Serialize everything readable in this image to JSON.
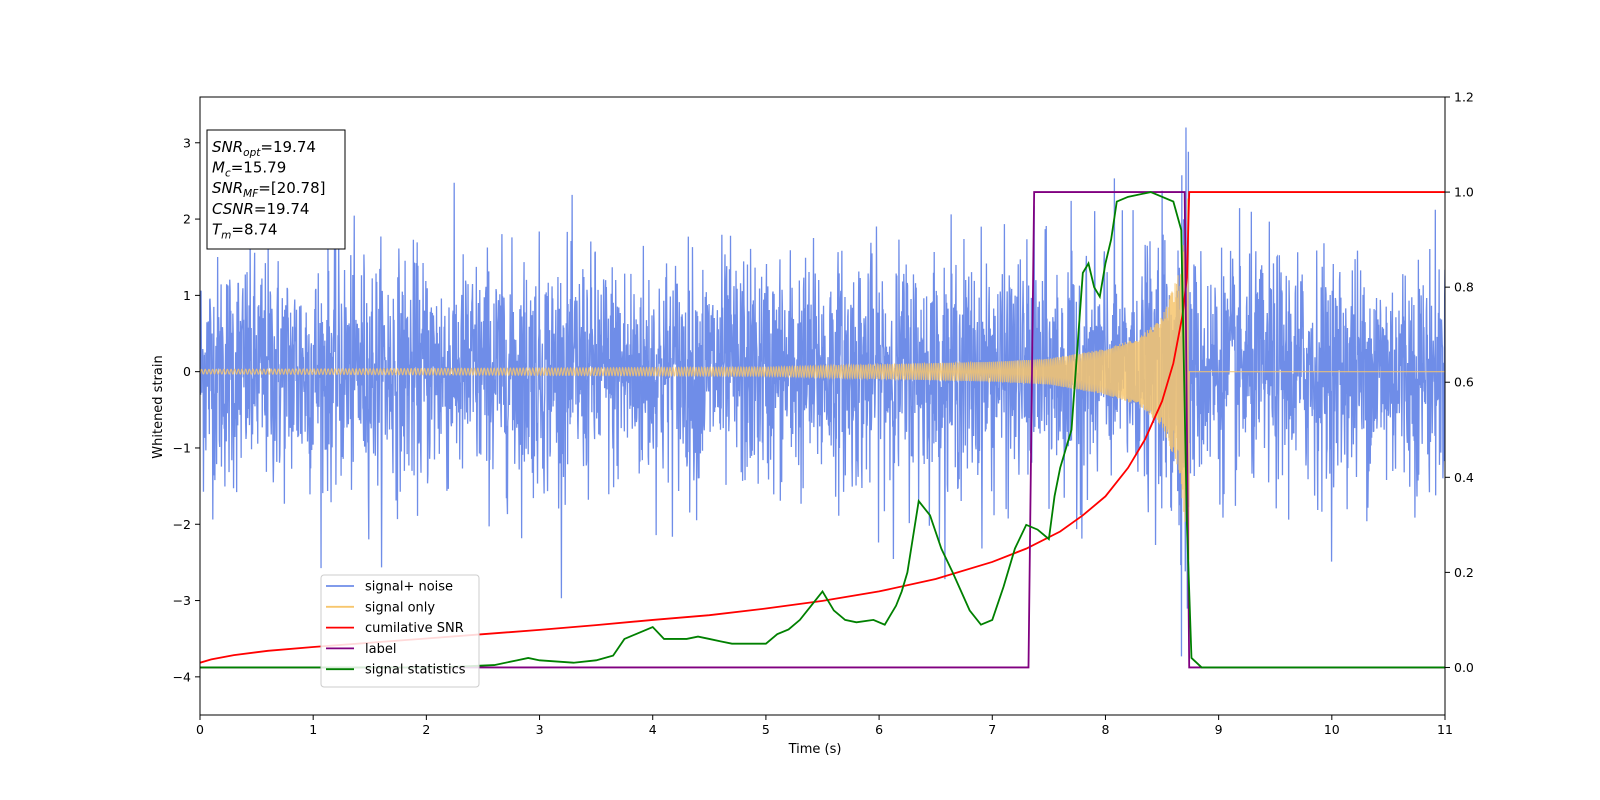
{
  "chart_data": {
    "type": "line",
    "xlabel": "Time (s)",
    "ylabel": "Whitened strain",
    "xlim": [
      0,
      11
    ],
    "ylim": [
      -4.5,
      3.6
    ],
    "ylim_right": [
      -0.1,
      1.2
    ],
    "x_ticks": [
      0,
      1,
      2,
      3,
      4,
      5,
      6,
      7,
      8,
      9,
      10,
      11
    ],
    "y_ticks": [
      -4,
      -3,
      -2,
      -1,
      0,
      1,
      2,
      3
    ],
    "y_ticks_right": [
      0.0,
      0.2,
      0.4,
      0.6,
      0.8,
      1.0,
      1.2
    ],
    "y_tick_labels": [
      "−4",
      "−3",
      "−2",
      "−1",
      "0",
      "1",
      "2",
      "3"
    ],
    "y_tick_labels_right": [
      "0.0",
      "0.2",
      "0.4",
      "0.6",
      "0.8",
      "1.0",
      "1.2"
    ],
    "grid": false,
    "legend_position": "lower-left",
    "colors": {
      "noise": "#6f8de8",
      "signal": "#f7c66d",
      "cumulative": "#ff0000",
      "label": "#800080",
      "stats": "#008000"
    },
    "series": [
      {
        "name": "signal+ noise",
        "axis": "left",
        "description_values": {
          "noise_sigma": 0.75,
          "peak": 3.2,
          "trough": -4.15
        }
      },
      {
        "name": "signal only",
        "axis": "left",
        "merger_time": 8.74,
        "envelope": [
          [
            0,
            0.03
          ],
          [
            5,
            0.06
          ],
          [
            7,
            0.13
          ],
          [
            7.5,
            0.17
          ],
          [
            8,
            0.3
          ],
          [
            8.3,
            0.45
          ],
          [
            8.5,
            0.72
          ],
          [
            8.65,
            1.3
          ],
          [
            8.74,
            2.5
          ]
        ]
      },
      {
        "name": "cumilative SNR",
        "axis": "right",
        "x": [
          0,
          0.1,
          0.3,
          0.6,
          1.0,
          1.5,
          2.0,
          2.5,
          3.0,
          3.5,
          4.0,
          4.5,
          5.0,
          5.5,
          6.0,
          6.5,
          7.0,
          7.3,
          7.6,
          7.8,
          8.0,
          8.2,
          8.35,
          8.5,
          8.6,
          8.68,
          8.72,
          8.74,
          11
        ],
        "y": [
          0.01,
          0.017,
          0.026,
          0.035,
          0.043,
          0.052,
          0.061,
          0.07,
          0.079,
          0.089,
          0.1,
          0.11,
          0.124,
          0.14,
          0.16,
          0.186,
          0.222,
          0.25,
          0.286,
          0.32,
          0.36,
          0.42,
          0.48,
          0.56,
          0.64,
          0.74,
          0.82,
          1.0,
          1.0
        ]
      },
      {
        "name": "label",
        "axis": "right",
        "x": [
          0,
          7.32,
          7.37,
          8.7,
          8.74,
          11
        ],
        "y": [
          0,
          0,
          1,
          1,
          0,
          0
        ]
      },
      {
        "name": "signal statistics",
        "axis": "right",
        "x": [
          0,
          0.5,
          1.0,
          1.5,
          2.0,
          2.3,
          2.6,
          2.8,
          2.9,
          3.0,
          3.3,
          3.5,
          3.65,
          3.75,
          3.85,
          3.95,
          4.0,
          4.1,
          4.2,
          4.3,
          4.4,
          4.5,
          4.6,
          4.7,
          4.8,
          4.9,
          5.0,
          5.1,
          5.2,
          5.3,
          5.4,
          5.5,
          5.6,
          5.7,
          5.8,
          5.95,
          6.05,
          6.15,
          6.2,
          6.25,
          6.35,
          6.45,
          6.55,
          6.65,
          6.8,
          6.9,
          7.0,
          7.1,
          7.2,
          7.3,
          7.4,
          7.45,
          7.5,
          7.55,
          7.6,
          7.7,
          7.8,
          7.85,
          7.9,
          7.95,
          8.0,
          8.05,
          8.1,
          8.2,
          8.4,
          8.6,
          8.67,
          8.72,
          8.76,
          8.85,
          11
        ],
        "y": [
          0.0,
          0.0,
          0.0,
          0.0,
          0.0,
          0.002,
          0.005,
          0.015,
          0.02,
          0.015,
          0.01,
          0.015,
          0.025,
          0.06,
          0.07,
          0.08,
          0.085,
          0.06,
          0.06,
          0.06,
          0.065,
          0.06,
          0.055,
          0.05,
          0.05,
          0.05,
          0.05,
          0.07,
          0.08,
          0.1,
          0.13,
          0.16,
          0.12,
          0.1,
          0.095,
          0.1,
          0.09,
          0.13,
          0.16,
          0.2,
          0.35,
          0.32,
          0.25,
          0.2,
          0.12,
          0.09,
          0.1,
          0.17,
          0.25,
          0.3,
          0.29,
          0.28,
          0.27,
          0.36,
          0.42,
          0.5,
          0.83,
          0.85,
          0.8,
          0.78,
          0.85,
          0.9,
          0.98,
          0.99,
          1.0,
          0.98,
          0.92,
          0.3,
          0.02,
          0.0,
          0.0
        ]
      }
    ],
    "annotation": [
      {
        "prefix": "SNR",
        "sub": "opt",
        "value": "=19.74"
      },
      {
        "prefix": "M",
        "sub": "c",
        "value": "=15.79"
      },
      {
        "prefix": "SNR",
        "sub": "MF",
        "value": "=[20.78]"
      },
      {
        "prefix": "CSNR",
        "sub": "",
        "value": "=19.74"
      },
      {
        "prefix": "T",
        "sub": "m",
        "value": "=8.74"
      }
    ]
  }
}
